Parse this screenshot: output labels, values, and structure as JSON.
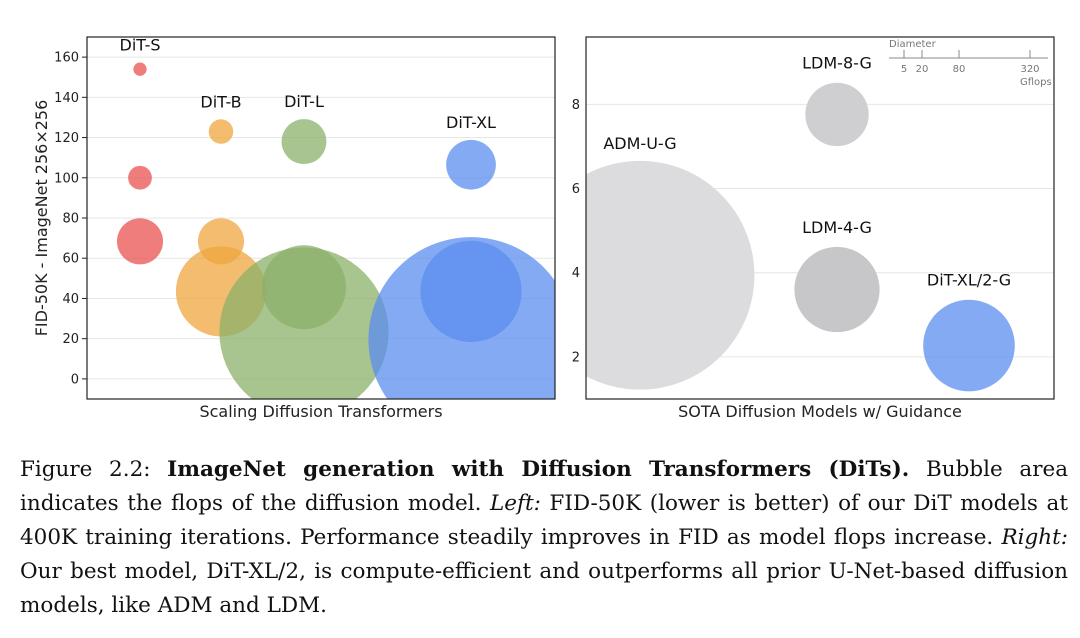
{
  "chart_data": [
    {
      "type": "scatter",
      "title": "",
      "xlabel": "Scaling Diffusion Transformers",
      "ylabel": "FID-50K - ImageNet 256×256",
      "ylim": [
        -10,
        170
      ],
      "yticks": [
        0,
        20,
        40,
        60,
        80,
        100,
        120,
        140,
        160
      ],
      "grid": true,
      "legend": "none",
      "categories": [
        "DiT-S",
        "DiT-B",
        "DiT-L",
        "DiT-XL"
      ],
      "series": [
        {
          "name": "DiT-S",
          "color": "#e8524f",
          "points": [
            {
              "y": 154,
              "gflops": 0.5
            },
            {
              "y": 100,
              "gflops": 1.6
            },
            {
              "y": 68.4,
              "gflops": 6
            }
          ]
        },
        {
          "name": "DiT-B",
          "color": "#efa63f",
          "points": [
            {
              "y": 123,
              "gflops": 1.7
            },
            {
              "y": 68.4,
              "gflops": 6
            },
            {
              "y": 43.5,
              "gflops": 23
            }
          ]
        },
        {
          "name": "DiT-L",
          "color": "#8bb06a",
          "points": [
            {
              "y": 118,
              "gflops": 5.7
            },
            {
              "y": 45.6,
              "gflops": 20
            },
            {
              "y": 23.3,
              "gflops": 81
            }
          ]
        },
        {
          "name": "DiT-XL",
          "color": "#5b8ef0",
          "points": [
            {
              "y": 106.5,
              "gflops": 7
            },
            {
              "y": 43.5,
              "gflops": 29
            },
            {
              "y": 19.5,
              "gflops": 119
            }
          ]
        }
      ]
    },
    {
      "type": "scatter",
      "title": "",
      "xlabel": "SOTA Diffusion Models w/ Guidance",
      "ylabel": "",
      "ylim": [
        1,
        9.6
      ],
      "yticks": [
        2,
        4,
        6,
        8
      ],
      "grid": true,
      "legend": "top-right",
      "points": [
        {
          "label": "ADM-U-G",
          "y": 3.94,
          "gflops": 742,
          "color": "#dcdcdf"
        },
        {
          "label": "LDM-8-G",
          "y": 7.76,
          "gflops": 57,
          "color": "#cfcfd2"
        },
        {
          "label": "LDM-4-G",
          "y": 3.6,
          "gflops": 103,
          "color": "#c7c7ca"
        },
        {
          "label": "DiT-XL/2-G",
          "y": 2.27,
          "gflops": 119,
          "color": "#5b8ef0"
        }
      ],
      "size_legend": {
        "title": "Diameter",
        "ticks": [
          "5",
          "20",
          "80",
          "320"
        ],
        "unit": "Gflops"
      }
    }
  ],
  "caption": {
    "prefix": "Figure 2.2: ",
    "bold": "ImageNet generation with Diffusion Transformers (DiTs).",
    "part1": " Bubble area indicates the flops of the diffusion model. ",
    "left_label": "Left:",
    "part2": " FID-50K (lower is better) of our DiT models at 400K training iterations. Performance steadily improves in FID as model flops increase. ",
    "right_label": "Right:",
    "part3": " Our best model, DiT-XL/2, is compute-efficient and outperforms all prior U-Net-based diffusion models, like ADM and LDM."
  }
}
